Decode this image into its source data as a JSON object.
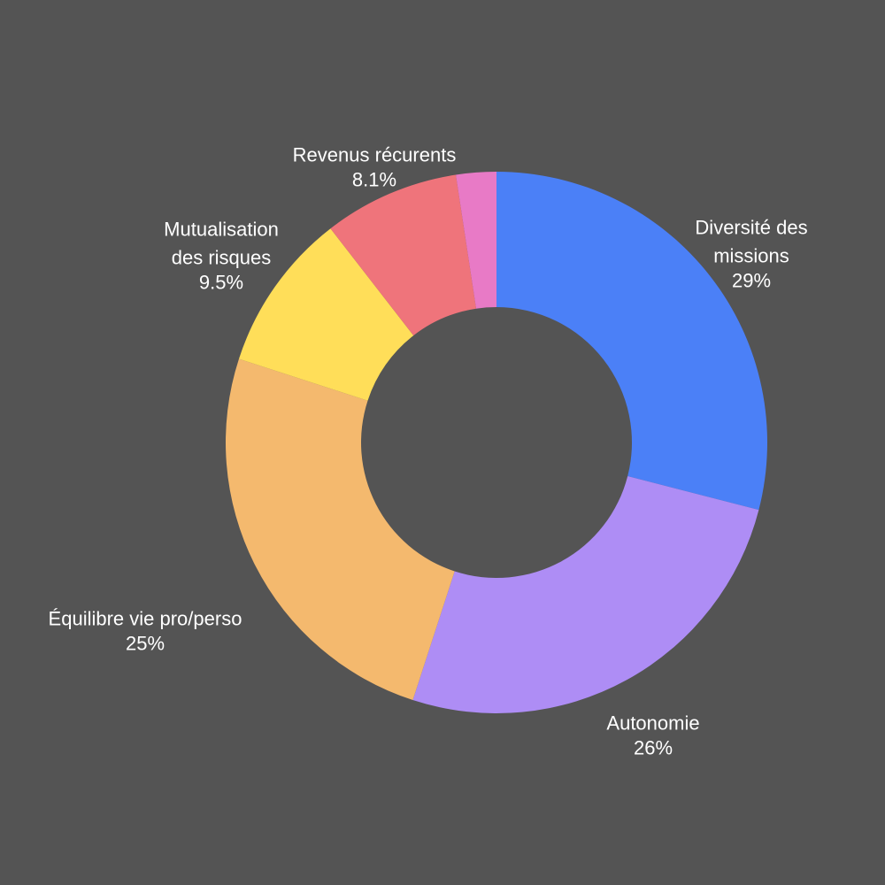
{
  "chart_data": {
    "type": "pie",
    "variant": "donut",
    "title": "",
    "categories": [
      "Diversité des missions",
      "Autonomie",
      "Équilibre vie pro/perso",
      "Mutualisation des risques",
      "Revenus récurents",
      ""
    ],
    "values": [
      29,
      26,
      25,
      9.5,
      8.1,
      2.4
    ],
    "value_labels": [
      "29%",
      "26%",
      "25%",
      "9.5%",
      "8.1%",
      ""
    ],
    "colors": [
      "#4b80f7",
      "#ae8df5",
      "#f4b96e",
      "#ffde59",
      "#ef747b",
      "#e87ac6"
    ],
    "background_color": "#545454",
    "start_angle_deg": 0,
    "direction": "clockwise",
    "legend": "none",
    "labels": [
      {
        "lines": [
          "Diversité des",
          "missions"
        ],
        "value": "29%"
      },
      {
        "lines": [
          "Autonomie"
        ],
        "value": "26%"
      },
      {
        "lines": [
          "Équilibre vie pro/perso"
        ],
        "value": "25%"
      },
      {
        "lines": [
          "Mutualisation",
          "des risques"
        ],
        "value": "9.5%"
      },
      {
        "lines": [
          "Revenus récurents"
        ],
        "value": "8.1%"
      },
      {
        "lines": [],
        "value": ""
      }
    ]
  }
}
